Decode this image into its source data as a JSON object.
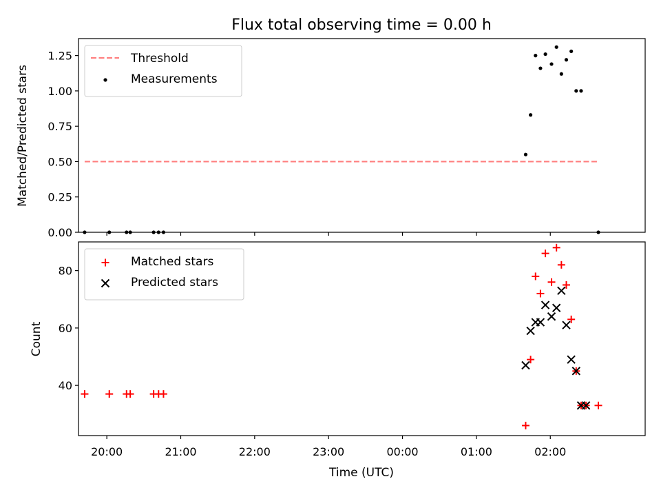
{
  "chart_data": {
    "title": "Flux total observing time = 0.00 h",
    "xlabel": "Time (UTC)",
    "x_ticks": [
      "20:00",
      "21:00",
      "22:00",
      "23:00",
      "00:00",
      "01:00",
      "02:00"
    ],
    "xlim": [
      "19:37",
      "03:17"
    ],
    "panels": [
      {
        "type": "scatter",
        "ylabel": "Matched/Predicted stars",
        "ylim": [
          0,
          1.37
        ],
        "y_ticks": [
          "0.00",
          "0.25",
          "0.50",
          "0.75",
          "1.00",
          "1.25"
        ],
        "legend_position": "top-left",
        "series": [
          {
            "name": "Threshold",
            "kind": "dashed-line",
            "color": "#ff7f7f",
            "x": [
              "19:42",
              "02:39"
            ],
            "y": [
              0.5,
              0.5
            ]
          },
          {
            "name": "Measurements",
            "kind": "dot",
            "color": "#000000",
            "x": [
              "19:42",
              "20:02",
              "20:16",
              "20:19",
              "20:38",
              "20:42",
              "20:46",
              "01:40",
              "01:44",
              "01:48",
              "01:52",
              "01:56",
              "02:01",
              "02:05",
              "02:09",
              "02:13",
              "02:17",
              "02:21",
              "02:25",
              "02:39"
            ],
            "y": [
              0.0,
              0.0,
              0.0,
              0.0,
              0.0,
              0.0,
              0.0,
              0.55,
              0.83,
              1.25,
              1.16,
              1.26,
              1.19,
              1.31,
              1.12,
              1.22,
              1.28,
              1.0,
              1.0,
              0.0
            ]
          }
        ]
      },
      {
        "type": "scatter",
        "ylabel": "Count",
        "ylim": [
          22.5,
          90
        ],
        "y_ticks": [
          "40",
          "60",
          "80"
        ],
        "legend_position": "top-left",
        "series": [
          {
            "name": "Matched stars",
            "marker": "plus",
            "color": "#ff0000",
            "x": [
              "19:42",
              "20:02",
              "20:16",
              "20:19",
              "20:38",
              "20:42",
              "20:46",
              "01:40",
              "01:44",
              "01:48",
              "01:52",
              "01:56",
              "02:01",
              "02:05",
              "02:09",
              "02:13",
              "02:17",
              "02:21",
              "02:25",
              "02:29",
              "02:39"
            ],
            "y": [
              37,
              37,
              37,
              37,
              37,
              37,
              37,
              26,
              49,
              78,
              72,
              86,
              76,
              88,
              82,
              75,
              63,
              45,
              33,
              33,
              33
            ]
          },
          {
            "name": "Predicted stars",
            "marker": "x",
            "color": "#000000",
            "x": [
              "01:40",
              "01:44",
              "01:48",
              "01:52",
              "01:56",
              "02:01",
              "02:05",
              "02:09",
              "02:13",
              "02:17",
              "02:21",
              "02:25",
              "02:29"
            ],
            "y": [
              47,
              59,
              62,
              62,
              68,
              64,
              67,
              73,
              61,
              49,
              45,
              33,
              33
            ]
          }
        ]
      }
    ]
  }
}
